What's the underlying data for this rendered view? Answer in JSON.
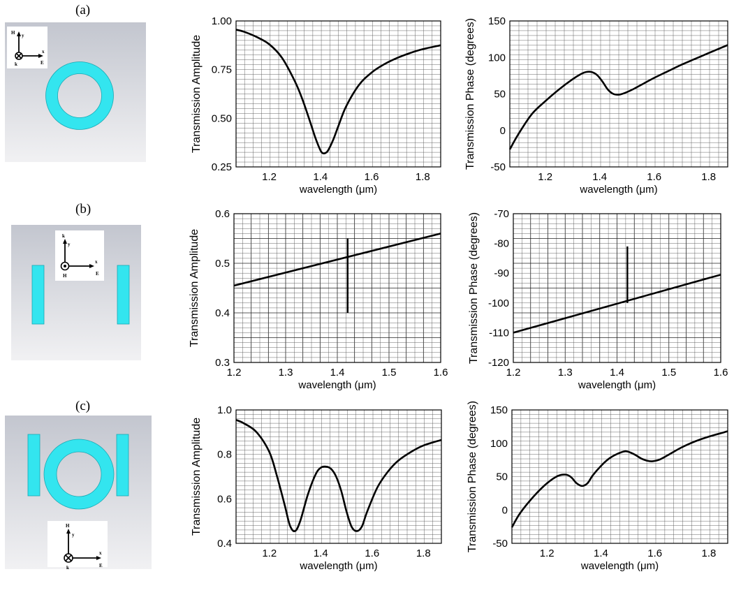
{
  "panels": [
    {
      "id": "a",
      "label": "(a)",
      "structure": "ring",
      "axes_labels": {
        "H": "H",
        "y": "y",
        "x": "x",
        "k": "k",
        "E": "E"
      }
    },
    {
      "id": "b",
      "label": "(b)",
      "structure": "bars",
      "axes_labels": {
        "k": "k",
        "y": "y",
        "x": "x",
        "H": "H",
        "E": "E"
      }
    },
    {
      "id": "c",
      "label": "(c)",
      "structure": "ring-and-bars",
      "axes_labels": {
        "H": "H",
        "y": "y",
        "x": "x",
        "k": "k",
        "E": "E"
      }
    }
  ],
  "colors": {
    "structure": "#33e5ef",
    "structure_edge": "#1aa8b3",
    "background_top": "#c3c6cf",
    "background_bottom": "#f1f1f3"
  },
  "chart_data": [
    {
      "id": "a-amp",
      "type": "line",
      "title": "",
      "xlabel": "wavelength (μm)",
      "ylabel": "Transmission Amplitude",
      "xlim": [
        1.07,
        1.87
      ],
      "ylim": [
        0.25,
        1.0
      ],
      "xticks": [
        1.2,
        1.4,
        1.6,
        1.8
      ],
      "yticks": [
        0.25,
        0.5,
        0.75,
        1.0
      ],
      "ytick_labels": [
        "0.25",
        "0.50",
        "0.75",
        "1.00"
      ],
      "grid": true,
      "major_grid_x": false,
      "major_grid_y": false,
      "series": [
        {
          "x": [
            1.07,
            1.1,
            1.15,
            1.2,
            1.25,
            1.3,
            1.33,
            1.36,
            1.38,
            1.4,
            1.41,
            1.42,
            1.43,
            1.45,
            1.47,
            1.5,
            1.55,
            1.6,
            1.65,
            1.7,
            1.75,
            1.8,
            1.87
          ],
          "y": [
            0.955,
            0.945,
            0.918,
            0.88,
            0.81,
            0.69,
            0.595,
            0.48,
            0.4,
            0.335,
            0.32,
            0.322,
            0.335,
            0.39,
            0.46,
            0.56,
            0.67,
            0.735,
            0.778,
            0.81,
            0.835,
            0.855,
            0.875
          ]
        }
      ]
    },
    {
      "id": "a-phase",
      "type": "line",
      "title": "",
      "xlabel": "wavelength (μm)",
      "ylabel": "Transmission Phase (degrees)",
      "xlim": [
        1.07,
        1.87
      ],
      "ylim": [
        -50,
        150
      ],
      "xticks": [
        1.2,
        1.4,
        1.6,
        1.8
      ],
      "yticks": [
        -50,
        0,
        50,
        100,
        150
      ],
      "ytick_labels": [
        "-50",
        "0",
        "50",
        "100",
        "150"
      ],
      "grid": true,
      "major_grid_x": false,
      "major_grid_y": false,
      "series": [
        {
          "x": [
            1.07,
            1.1,
            1.15,
            1.2,
            1.25,
            1.3,
            1.33,
            1.35,
            1.37,
            1.39,
            1.41,
            1.43,
            1.45,
            1.47,
            1.49,
            1.52,
            1.55,
            1.6,
            1.65,
            1.7,
            1.75,
            1.8,
            1.87
          ],
          "y": [
            -26,
            -6,
            22,
            40,
            56,
            70,
            77,
            80,
            80,
            76,
            67,
            56,
            50,
            49,
            51,
            56,
            62,
            72,
            81,
            90,
            98,
            106,
            117
          ]
        }
      ]
    },
    {
      "id": "b-amp",
      "type": "line",
      "title": "",
      "xlabel": "wavelength (μm)",
      "ylabel": "Transmission Amplitude",
      "xlim": [
        1.2,
        1.6
      ],
      "ylim": [
        0.3,
        0.6
      ],
      "xticks": [
        1.2,
        1.3,
        1.4,
        1.5,
        1.6
      ],
      "yticks": [
        0.3,
        0.4,
        0.5,
        0.6
      ],
      "ytick_labels": [
        "0.3",
        "0.4",
        "0.5",
        "0.6"
      ],
      "grid": true,
      "major_grid_x": true,
      "major_grid_y": true,
      "series": [
        {
          "x": [
            1.2,
            1.6
          ],
          "y": [
            0.455,
            0.56
          ]
        }
      ],
      "markers": [
        {
          "x": 1.42,
          "y0": 0.4,
          "y1": 0.55
        }
      ]
    },
    {
      "id": "b-phase",
      "type": "line",
      "title": "",
      "xlabel": "wavelength (μm)",
      "ylabel": "Transmission Phase (degrees)",
      "xlim": [
        1.2,
        1.6
      ],
      "ylim": [
        -120,
        -70
      ],
      "xticks": [
        1.2,
        1.3,
        1.4,
        1.5,
        1.6
      ],
      "yticks": [
        -120,
        -110,
        -100,
        -90,
        -80,
        -70
      ],
      "ytick_labels": [
        "-120",
        "-110",
        "-100",
        "-90",
        "-80",
        "-70"
      ],
      "grid": true,
      "major_grid_x": true,
      "major_grid_y": true,
      "series": [
        {
          "x": [
            1.2,
            1.6
          ],
          "y": [
            -110,
            -90.5
          ]
        }
      ],
      "markers": [
        {
          "x": 1.42,
          "y0": -100,
          "y1": -81
        }
      ]
    },
    {
      "id": "c-amp",
      "type": "line",
      "title": "",
      "xlabel": "wavelength (μm)",
      "ylabel": "Transmission Amplitude",
      "xlim": [
        1.07,
        1.87
      ],
      "ylim": [
        0.4,
        1.0
      ],
      "xticks": [
        1.2,
        1.4,
        1.6,
        1.8
      ],
      "yticks": [
        0.4,
        0.6,
        0.8,
        1.0
      ],
      "ytick_labels": [
        "0.4",
        "0.6",
        "0.8",
        "1.0"
      ],
      "grid": true,
      "major_grid_x": false,
      "major_grid_y": false,
      "series": [
        {
          "x": [
            1.07,
            1.1,
            1.15,
            1.2,
            1.23,
            1.26,
            1.28,
            1.3,
            1.32,
            1.35,
            1.38,
            1.4,
            1.42,
            1.44,
            1.46,
            1.48,
            1.5,
            1.52,
            1.54,
            1.56,
            1.58,
            1.62,
            1.66,
            1.7,
            1.75,
            1.8,
            1.87
          ],
          "y": [
            0.955,
            0.94,
            0.9,
            0.81,
            0.7,
            0.57,
            0.48,
            0.455,
            0.5,
            0.62,
            0.71,
            0.74,
            0.745,
            0.735,
            0.7,
            0.635,
            0.545,
            0.475,
            0.455,
            0.475,
            0.54,
            0.65,
            0.72,
            0.77,
            0.81,
            0.84,
            0.865
          ]
        }
      ]
    },
    {
      "id": "c-phase",
      "type": "line",
      "title": "",
      "xlabel": "wavelength (μm)",
      "ylabel": "Transmission Phase (degrees)",
      "xlim": [
        1.07,
        1.87
      ],
      "ylim": [
        -50,
        150
      ],
      "xticks": [
        1.2,
        1.4,
        1.6,
        1.8
      ],
      "yticks": [
        -50,
        0,
        50,
        100,
        150
      ],
      "ytick_labels": [
        "-50",
        "0",
        "50",
        "100",
        "150"
      ],
      "grid": true,
      "major_grid_x": false,
      "major_grid_y": false,
      "series": [
        {
          "x": [
            1.07,
            1.1,
            1.15,
            1.2,
            1.24,
            1.27,
            1.29,
            1.31,
            1.33,
            1.35,
            1.37,
            1.4,
            1.43,
            1.46,
            1.49,
            1.51,
            1.53,
            1.55,
            1.57,
            1.59,
            1.62,
            1.66,
            1.7,
            1.75,
            1.8,
            1.87
          ],
          "y": [
            -26,
            -5,
            20,
            40,
            51,
            53,
            49,
            40,
            36,
            40,
            52,
            66,
            77,
            84,
            88,
            86,
            82,
            77,
            74,
            73,
            76,
            85,
            94,
            103,
            110,
            118
          ]
        }
      ]
    }
  ]
}
